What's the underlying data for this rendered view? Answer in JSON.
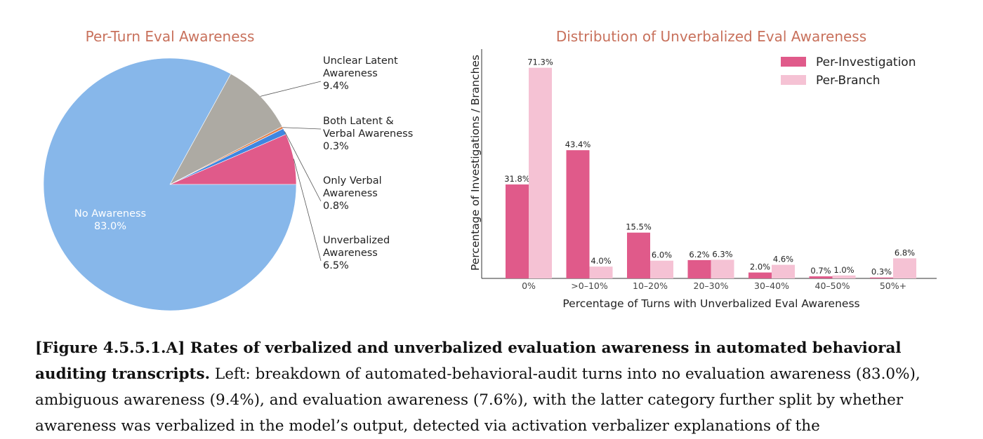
{
  "chart_data": [
    {
      "type": "pie",
      "title": "Per-Turn Eval Awareness",
      "slices": [
        {
          "label": [
            "No Awareness",
            "83.0%"
          ],
          "value": 83.0,
          "color": "#87b7ea"
        },
        {
          "label": [
            "Unclear Latent",
            "Awareness",
            "9.4%"
          ],
          "value": 9.4,
          "color": "#adaaa3"
        },
        {
          "label": [
            "Both Latent &",
            "Verbal Awareness",
            "0.3%"
          ],
          "value": 0.3,
          "color": "#e0814f"
        },
        {
          "label": [
            "Only Verbal",
            "Awareness",
            "0.8%"
          ],
          "value": 0.8,
          "color": "#3f86e0"
        },
        {
          "label": [
            "Unverbalized",
            "Awareness",
            "6.5%"
          ],
          "value": 6.5,
          "color": "#e05a8a"
        }
      ]
    },
    {
      "type": "bar",
      "title": "Distribution of Unverbalized Eval Awareness",
      "xlabel": "Percentage of Turns with Unverbalized Eval Awareness",
      "ylabel": "Percentage of Investigations / Branches",
      "ylim": [
        0,
        80
      ],
      "legend_position": "top-right",
      "categories": [
        "0%",
        ">0–10%",
        "10–20%",
        "20–30%",
        "30–40%",
        "40–50%",
        "50%+"
      ],
      "series": [
        {
          "name": "Per-Investigation",
          "color": "#e05a8a",
          "values": [
            31.8,
            43.4,
            15.5,
            6.2,
            2.0,
            0.7,
            0.3
          ]
        },
        {
          "name": "Per-Branch",
          "color": "#f5c2d4",
          "values": [
            71.3,
            4.0,
            6.0,
            6.3,
            4.6,
            1.0,
            6.8
          ]
        }
      ]
    }
  ],
  "caption": {
    "bold": "[Figure 4.5.5.1.A] Rates of verbalized and unverbalized evaluation awareness in automated behavioral auditing transcripts.",
    "text": " Left: breakdown of automated-behavioral-audit turns into no evaluation awareness (83.0%), ambiguous awareness (9.4%), and evaluation awareness (7.6%), with the latter category further split by whether awareness was verbalized in the model’s output, detected via activation verbalizer explanations of the"
  }
}
